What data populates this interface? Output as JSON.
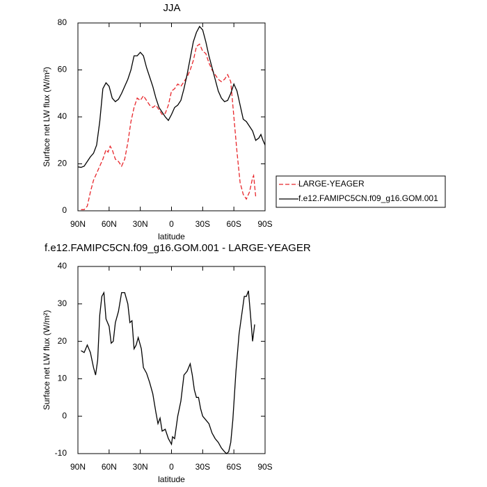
{
  "chart_data": [
    {
      "type": "line",
      "title": "JJA",
      "xlabel": "latitude",
      "ylabel": "Surface net LW flux (W/m²)",
      "xlim": [
        90,
        -90
      ],
      "xticks": [
        {
          "value": 90,
          "label": "90N"
        },
        {
          "value": 60,
          "label": "60N"
        },
        {
          "value": 30,
          "label": "30N"
        },
        0,
        {
          "value": -30,
          "label": "30S"
        },
        {
          "value": -60,
          "label": "60S"
        },
        {
          "value": -90,
          "label": "90S"
        }
      ],
      "ylim": [
        0,
        80
      ],
      "yticks": [
        0,
        20,
        40,
        60,
        80
      ],
      "legend": "right",
      "series": [
        {
          "name": "LARGE-YEAGER",
          "color": "#e8252a",
          "line_style": "dashed",
          "x": [
            87,
            84,
            81,
            78,
            75,
            72,
            69,
            66,
            63,
            61,
            59,
            57,
            54,
            51,
            48,
            45,
            42,
            39,
            36,
            33,
            30,
            27,
            24,
            21,
            18,
            15,
            12,
            9,
            6,
            3,
            0,
            -3,
            -6,
            -9,
            -12,
            -15,
            -18,
            -21,
            -24,
            -27,
            -30,
            -33,
            -36,
            -39,
            -42,
            -45,
            -48,
            -51,
            -54,
            -57,
            -60,
            -63,
            -66,
            -69,
            -72,
            -75,
            -78,
            -79,
            -81
          ],
          "values": [
            0.5,
            0.5,
            2,
            8,
            13,
            16,
            19,
            22,
            26,
            25,
            27.5,
            26,
            22,
            21,
            19,
            22,
            29,
            38,
            44,
            48,
            47,
            49,
            47,
            45,
            44,
            45,
            43,
            41,
            41.5,
            45,
            51,
            52,
            54,
            53,
            55,
            57,
            60,
            64,
            70,
            71,
            68,
            67,
            63,
            60,
            58,
            56,
            55,
            56,
            58,
            55,
            40,
            25,
            12,
            7,
            5,
            8,
            14,
            15,
            6
          ]
        },
        {
          "name": "f.e12.FAMIPC5CN.f09_g16.GOM.001",
          "color": "#000000",
          "line_style": "solid",
          "x": [
            90,
            87,
            84,
            81,
            78,
            75,
            72,
            69,
            66,
            63,
            60,
            57,
            54,
            51,
            48,
            45,
            42,
            39,
            36,
            33,
            30,
            27,
            24,
            21,
            18,
            15,
            12,
            9,
            6,
            3,
            0,
            -3,
            -6,
            -9,
            -12,
            -15,
            -18,
            -21,
            -24,
            -27,
            -30,
            -33,
            -36,
            -39,
            -42,
            -45,
            -48,
            -51,
            -54,
            -57,
            -60,
            -63,
            -66,
            -69,
            -72,
            -75,
            -78,
            -81,
            -84,
            -86,
            -88,
            -90
          ],
          "values": [
            18.7,
            18.5,
            19,
            21,
            23,
            24.5,
            28,
            38,
            52,
            54.5,
            53,
            48,
            46.5,
            47.5,
            50,
            53,
            56,
            60,
            66,
            66,
            67.5,
            66,
            61,
            57,
            53,
            48,
            44,
            42,
            40,
            38.5,
            41,
            44,
            45,
            47,
            52,
            58,
            65,
            72,
            76,
            78.5,
            77,
            72,
            66,
            61,
            56,
            51,
            48,
            46.5,
            47,
            50,
            54,
            51,
            45,
            39,
            38,
            36,
            34,
            30,
            31,
            32.5,
            30,
            28
          ]
        }
      ]
    },
    {
      "type": "line",
      "title": "f.e12.FAMIPC5CN.f09_g16.GOM.001 - LARGE-YEAGER",
      "xlabel": "latitude",
      "ylabel": "Surface net LW flux (W/m²)",
      "xlim": [
        90,
        -90
      ],
      "xticks": [
        {
          "value": 90,
          "label": "90N"
        },
        {
          "value": 60,
          "label": "60N"
        },
        {
          "value": 30,
          "label": "30N"
        },
        0,
        {
          "value": -30,
          "label": "30S"
        },
        {
          "value": -60,
          "label": "60S"
        },
        {
          "value": -90,
          "label": "90S"
        }
      ],
      "ylim": [
        -10,
        40
      ],
      "yticks": [
        -10,
        0,
        10,
        20,
        30,
        40
      ],
      "series": [
        {
          "color": "#000000",
          "line_style": "solid",
          "x": [
            87,
            84,
            81,
            78,
            75,
            73,
            71,
            69,
            67,
            65,
            63,
            60,
            58,
            56,
            54,
            51,
            48,
            45,
            42,
            40,
            38,
            36,
            34,
            32,
            29,
            27,
            24,
            21,
            18,
            15,
            13,
            11,
            9,
            6,
            3,
            0,
            -1,
            -3,
            -6,
            -9,
            -12,
            -15,
            -18,
            -20,
            -22,
            -24,
            -26,
            -28,
            -30,
            -33,
            -36,
            -39,
            -42,
            -45,
            -48,
            -51,
            -53,
            -55,
            -57,
            -59,
            -62,
            -65,
            -68,
            -70,
            -72,
            -74,
            -76,
            -78,
            -80
          ],
          "values": [
            17.5,
            17,
            19,
            17,
            13,
            11,
            15,
            27,
            32,
            33,
            26,
            24,
            19.5,
            20,
            25,
            28,
            33,
            33,
            30,
            25,
            25.5,
            18,
            19,
            21,
            18,
            13,
            11.5,
            9,
            6,
            1,
            -2,
            -0.5,
            -4,
            -3.5,
            -6,
            -7.5,
            -5.5,
            -6,
            0,
            4,
            11,
            12,
            14,
            11,
            7,
            5,
            5,
            2,
            0,
            -1,
            -2,
            -4.5,
            -6,
            -7,
            -8.5,
            -9.5,
            -10,
            -9.5,
            -7,
            -1,
            12,
            22,
            28,
            32,
            32,
            33.5,
            27,
            20,
            24.5
          ]
        }
      ]
    }
  ]
}
